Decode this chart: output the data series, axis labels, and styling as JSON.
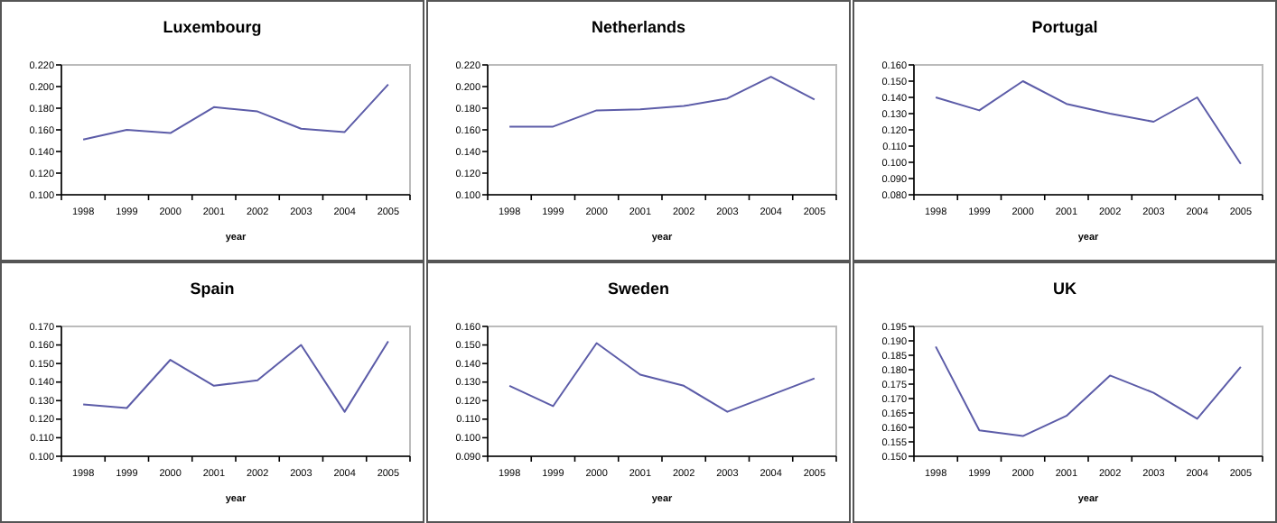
{
  "chart_data": [
    {
      "type": "line",
      "title": "Luxembourg",
      "xlabel": "year",
      "categories": [
        "1998",
        "1999",
        "2000",
        "2001",
        "2002",
        "2003",
        "2004",
        "2005"
      ],
      "series": [
        {
          "color": "#5c5ca8",
          "values": [
            0.151,
            0.16,
            0.157,
            0.181,
            0.177,
            0.161,
            0.158,
            0.202
          ]
        }
      ],
      "ylim": [
        0.1,
        0.22
      ],
      "yticks": [
        {
          "value": 0.1,
          "label": "0.100"
        },
        {
          "value": 0.12,
          "label": "0.120"
        },
        {
          "value": 0.14,
          "label": "0.140"
        },
        {
          "value": 0.16,
          "label": "0.160"
        },
        {
          "value": 0.18,
          "label": "0.180"
        },
        {
          "value": 0.2,
          "label": "0.200"
        },
        {
          "value": 0.22,
          "label": "0.220"
        }
      ],
      "grid": false,
      "marker": "none"
    },
    {
      "type": "line",
      "title": "Netherlands",
      "xlabel": "year",
      "categories": [
        "1998",
        "1999",
        "2000",
        "2001",
        "2002",
        "2003",
        "2004",
        "2005"
      ],
      "series": [
        {
          "color": "#5c5ca8",
          "values": [
            0.163,
            0.163,
            0.178,
            0.179,
            0.182,
            0.189,
            0.209,
            0.188
          ]
        }
      ],
      "ylim": [
        0.1,
        0.22
      ],
      "yticks": [
        {
          "value": 0.1,
          "label": "0.100"
        },
        {
          "value": 0.12,
          "label": "0.120"
        },
        {
          "value": 0.14,
          "label": "0.140"
        },
        {
          "value": 0.16,
          "label": "0.160"
        },
        {
          "value": 0.18,
          "label": "0.180"
        },
        {
          "value": 0.2,
          "label": "0.200"
        },
        {
          "value": 0.22,
          "label": "0.220"
        }
      ],
      "grid": false,
      "marker": "none"
    },
    {
      "type": "line",
      "title": "Portugal",
      "xlabel": "year",
      "categories": [
        "1998",
        "1999",
        "2000",
        "2001",
        "2002",
        "2003",
        "2004",
        "2005"
      ],
      "series": [
        {
          "color": "#5c5ca8",
          "values": [
            0.14,
            0.132,
            0.15,
            0.136,
            0.13,
            0.125,
            0.14,
            0.099
          ]
        }
      ],
      "ylim": [
        0.08,
        0.16
      ],
      "yticks": [
        {
          "value": 0.08,
          "label": "0.080"
        },
        {
          "value": 0.09,
          "label": "0.090"
        },
        {
          "value": 0.1,
          "label": "0.100"
        },
        {
          "value": 0.11,
          "label": "0.110"
        },
        {
          "value": 0.12,
          "label": "0.120"
        },
        {
          "value": 0.13,
          "label": "0.130"
        },
        {
          "value": 0.14,
          "label": "0.140"
        },
        {
          "value": 0.15,
          "label": "0.150"
        },
        {
          "value": 0.16,
          "label": "0.160"
        }
      ],
      "grid": false,
      "marker": "none"
    },
    {
      "type": "line",
      "title": "Spain",
      "xlabel": "year",
      "categories": [
        "1998",
        "1999",
        "2000",
        "2001",
        "2002",
        "2003",
        "2004",
        "2005"
      ],
      "series": [
        {
          "color": "#5c5ca8",
          "values": [
            0.128,
            0.126,
            0.152,
            0.138,
            0.141,
            0.16,
            0.124,
            0.162
          ]
        }
      ],
      "ylim": [
        0.1,
        0.17
      ],
      "yticks": [
        {
          "value": 0.1,
          "label": "0.100"
        },
        {
          "value": 0.11,
          "label": "0.110"
        },
        {
          "value": 0.12,
          "label": "0.120"
        },
        {
          "value": 0.13,
          "label": "0.130"
        },
        {
          "value": 0.14,
          "label": "0.140"
        },
        {
          "value": 0.15,
          "label": "0.150"
        },
        {
          "value": 0.16,
          "label": "0.160"
        },
        {
          "value": 0.17,
          "label": "0.170"
        }
      ],
      "grid": false,
      "marker": "none"
    },
    {
      "type": "line",
      "title": "Sweden",
      "xlabel": "year",
      "categories": [
        "1998",
        "1999",
        "2000",
        "2001",
        "2002",
        "2003",
        "2004",
        "2005"
      ],
      "series": [
        {
          "color": "#5c5ca8",
          "values": [
            0.128,
            0.117,
            0.151,
            0.134,
            0.128,
            0.114,
            0.123,
            0.132
          ]
        }
      ],
      "ylim": [
        0.09,
        0.16
      ],
      "yticks": [
        {
          "value": 0.09,
          "label": "0.090"
        },
        {
          "value": 0.1,
          "label": "0.100"
        },
        {
          "value": 0.11,
          "label": "0.110"
        },
        {
          "value": 0.12,
          "label": "0.120"
        },
        {
          "value": 0.13,
          "label": "0.130"
        },
        {
          "value": 0.14,
          "label": "0.140"
        },
        {
          "value": 0.15,
          "label": "0.150"
        },
        {
          "value": 0.16,
          "label": "0.160"
        }
      ],
      "grid": false,
      "marker": "none"
    },
    {
      "type": "line",
      "title": "UK",
      "xlabel": "year",
      "categories": [
        "1998",
        "1999",
        "2000",
        "2001",
        "2002",
        "2003",
        "2004",
        "2005"
      ],
      "series": [
        {
          "color": "#5c5ca8",
          "values": [
            0.188,
            0.159,
            0.157,
            0.164,
            0.178,
            0.172,
            0.163,
            0.181
          ]
        }
      ],
      "ylim": [
        0.15,
        0.195
      ],
      "yticks": [
        {
          "value": 0.15,
          "label": "0.150"
        },
        {
          "value": 0.155,
          "label": "0.155"
        },
        {
          "value": 0.16,
          "label": "0.160"
        },
        {
          "value": 0.165,
          "label": "0.165"
        },
        {
          "value": 0.17,
          "label": "0.170"
        },
        {
          "value": 0.175,
          "label": "0.175"
        },
        {
          "value": 0.18,
          "label": "0.180"
        },
        {
          "value": 0.185,
          "label": "0.185"
        },
        {
          "value": 0.19,
          "label": "0.190"
        },
        {
          "value": 0.195,
          "label": "0.195"
        }
      ],
      "grid": false,
      "marker": "none"
    }
  ]
}
